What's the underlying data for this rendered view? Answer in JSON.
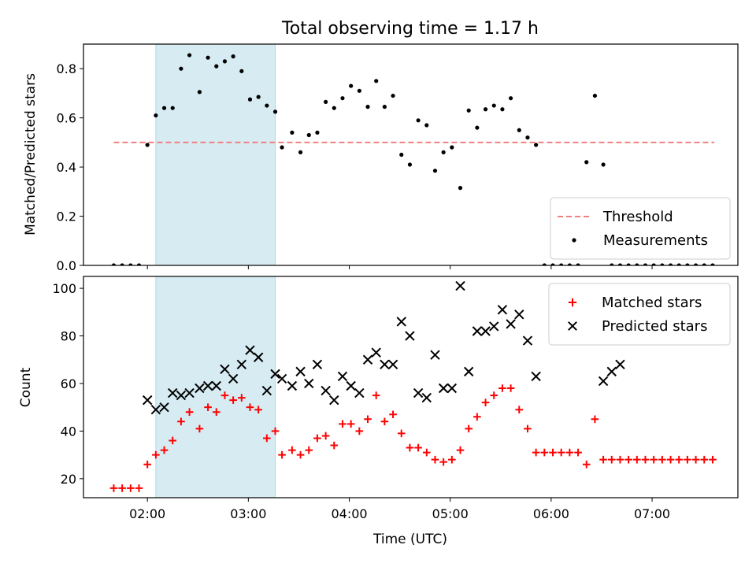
{
  "title": "Total observing time = 1.17 h",
  "xlabel": "Time (UTC)",
  "x_ticks": [
    "02:00",
    "03:00",
    "04:00",
    "05:00",
    "06:00",
    "07:00"
  ],
  "colors": {
    "shade": "#add8e6",
    "threshold": "#f08080",
    "measurements": "#000000",
    "matched": "#ff0000",
    "predicted": "#000000"
  },
  "chart_data": [
    {
      "type": "scatter",
      "ylabel": "Matched/Predicted stars",
      "ylim": [
        0,
        0.9
      ],
      "xlim": [
        "01:22",
        "07:51"
      ],
      "y_ticks": [
        "0.0",
        "0.2",
        "0.4",
        "0.6",
        "0.8"
      ],
      "shaded_interval": [
        "02:05",
        "03:16"
      ],
      "threshold": {
        "name": "Threshold",
        "value": 0.5,
        "x_range": [
          "01:40",
          "07:37"
        ]
      },
      "legend": {
        "placement": "lower right",
        "entries": [
          "Threshold",
          "Measurements"
        ]
      },
      "series": [
        {
          "name": "Measurements",
          "marker": "dot",
          "x": [
            "01:40",
            "01:45",
            "01:50",
            "01:55",
            "02:00",
            "02:05",
            "02:10",
            "02:15",
            "02:20",
            "02:25",
            "02:31",
            "02:36",
            "02:41",
            "02:46",
            "02:51",
            "02:56",
            "03:01",
            "03:06",
            "03:11",
            "03:16",
            "03:20",
            "03:26",
            "03:31",
            "03:36",
            "03:41",
            "03:46",
            "03:51",
            "03:56",
            "04:01",
            "04:06",
            "04:11",
            "04:16",
            "04:21",
            "04:26",
            "04:31",
            "04:36",
            "04:41",
            "04:46",
            "04:51",
            "04:56",
            "05:01",
            "05:06",
            "05:11",
            "05:16",
            "05:21",
            "05:26",
            "05:31",
            "05:36",
            "05:41",
            "05:46",
            "05:51",
            "05:56",
            "06:01",
            "06:06",
            "06:11",
            "06:16",
            "06:21",
            "06:26",
            "06:31",
            "06:36",
            "06:41",
            "06:46",
            "06:51",
            "06:56",
            "07:01",
            "07:06",
            "07:11",
            "07:16",
            "07:21",
            "07:26",
            "07:31",
            "07:36"
          ],
          "y": [
            0,
            0,
            0,
            0,
            0.49,
            0.61,
            0.64,
            0.64,
            0.8,
            0.855,
            0.705,
            0.845,
            0.81,
            0.83,
            0.85,
            0.79,
            0.675,
            0.685,
            0.65,
            0.625,
            0.48,
            0.54,
            0.46,
            0.53,
            0.54,
            0.665,
            0.64,
            0.68,
            0.73,
            0.71,
            0.645,
            0.75,
            0.645,
            0.69,
            0.45,
            0.41,
            0.59,
            0.57,
            0.385,
            0.46,
            0.48,
            0.315,
            0.63,
            0.56,
            0.635,
            0.65,
            0.635,
            0.68,
            0.55,
            0.52,
            0.49,
            0,
            0,
            0,
            0,
            0,
            0.42,
            0.69,
            0.41,
            0,
            0,
            0,
            0,
            0,
            0,
            0,
            0,
            0,
            0,
            0,
            0,
            0
          ]
        }
      ]
    },
    {
      "type": "scatter",
      "ylabel": "Count",
      "ylim": [
        12,
        105
      ],
      "y_ticks": [
        "20",
        "40",
        "60",
        "80",
        "100"
      ],
      "legend": {
        "placement": "upper right",
        "entries": [
          "Matched stars",
          "Predicted stars"
        ]
      },
      "series": [
        {
          "name": "Matched stars",
          "marker": "plus",
          "x": [
            "01:40",
            "01:45",
            "01:50",
            "01:55",
            "02:00",
            "02:05",
            "02:10",
            "02:15",
            "02:20",
            "02:25",
            "02:31",
            "02:36",
            "02:41",
            "02:46",
            "02:51",
            "02:56",
            "03:01",
            "03:06",
            "03:11",
            "03:16",
            "03:20",
            "03:26",
            "03:31",
            "03:36",
            "03:41",
            "03:46",
            "03:51",
            "03:56",
            "04:01",
            "04:06",
            "04:11",
            "04:16",
            "04:21",
            "04:26",
            "04:31",
            "04:36",
            "04:41",
            "04:46",
            "04:51",
            "04:56",
            "05:01",
            "05:06",
            "05:11",
            "05:16",
            "05:21",
            "05:26",
            "05:31",
            "05:36",
            "05:41",
            "05:46",
            "05:51",
            "05:56",
            "06:01",
            "06:06",
            "06:11",
            "06:16",
            "06:21",
            "06:26",
            "06:31",
            "06:36",
            "06:41",
            "06:46",
            "06:51",
            "06:56",
            "07:01",
            "07:06",
            "07:11",
            "07:16",
            "07:21",
            "07:26",
            "07:31",
            "07:36"
          ],
          "y": [
            16,
            16,
            16,
            16,
            26,
            30,
            32,
            36,
            44,
            48,
            41,
            50,
            48,
            55,
            53,
            54,
            50,
            49,
            37,
            40,
            30,
            32,
            30,
            32,
            37,
            38,
            34,
            43,
            43,
            40,
            45,
            55,
            44,
            47,
            39,
            33,
            33,
            31,
            28,
            27,
            28,
            32,
            41,
            46,
            52,
            55,
            58,
            58,
            49,
            41,
            31,
            31,
            31,
            31,
            31,
            31,
            26,
            45,
            28,
            28,
            28,
            28,
            28,
            28,
            28,
            28,
            28,
            28,
            28,
            28,
            28,
            28
          ]
        },
        {
          "name": "Predicted stars",
          "marker": "x",
          "x": [
            "02:00",
            "02:05",
            "02:10",
            "02:15",
            "02:20",
            "02:25",
            "02:31",
            "02:36",
            "02:41",
            "02:46",
            "02:51",
            "02:56",
            "03:01",
            "03:06",
            "03:11",
            "03:16",
            "03:20",
            "03:26",
            "03:31",
            "03:36",
            "03:41",
            "03:46",
            "03:51",
            "03:56",
            "04:01",
            "04:06",
            "04:11",
            "04:16",
            "04:21",
            "04:26",
            "04:31",
            "04:36",
            "04:41",
            "04:46",
            "04:51",
            "04:56",
            "05:01",
            "05:06",
            "05:11",
            "05:16",
            "05:21",
            "05:26",
            "05:31",
            "05:36",
            "05:41",
            "05:46",
            "05:51",
            "06:31",
            "06:36",
            "06:41"
          ],
          "y": [
            53,
            49,
            50,
            56,
            55,
            56,
            58,
            59,
            59,
            66,
            62,
            68,
            74,
            71,
            57,
            64,
            62,
            59,
            65,
            60,
            68,
            57,
            53,
            63,
            59,
            56,
            70,
            73,
            68,
            68,
            86,
            80,
            56,
            54,
            72,
            58,
            58,
            101,
            65,
            82,
            82,
            84,
            91,
            85,
            89,
            78,
            63,
            61,
            65,
            68
          ]
        }
      ]
    }
  ]
}
